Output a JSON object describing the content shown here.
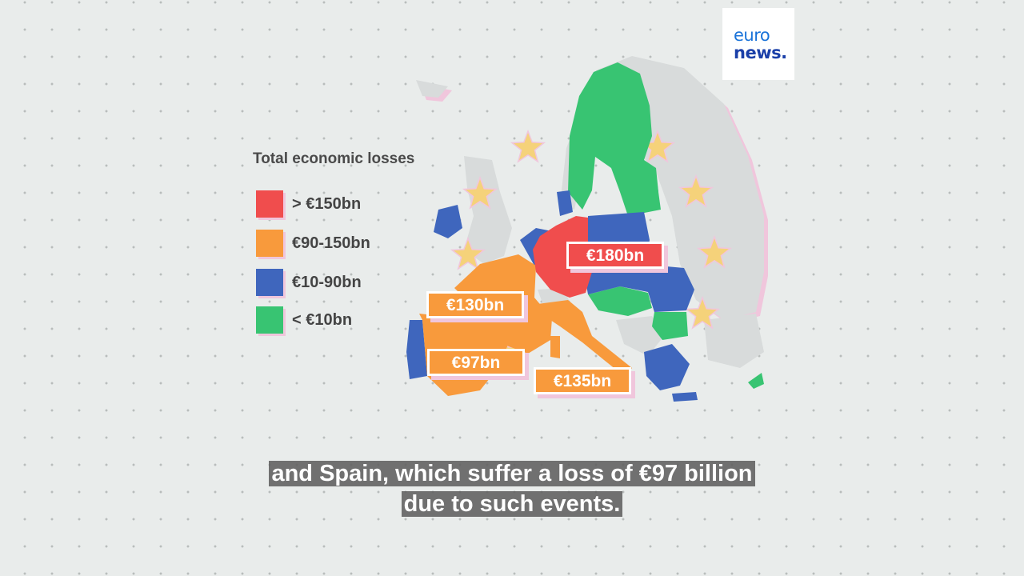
{
  "logo": {
    "line1": "euro",
    "line2": "news."
  },
  "legend": {
    "title": "Total economic losses",
    "items": [
      {
        "label": "> €150bn",
        "color": "#f04d4d"
      },
      {
        "label": "€90-150bn",
        "color": "#f89a3c"
      },
      {
        "label": "€10-90bn",
        "color": "#3f66bd"
      },
      {
        "label": "< €10bn",
        "color": "#38c472"
      }
    ]
  },
  "map_labels": {
    "germany": "€180bn",
    "france": "€130bn",
    "spain": "€97bn",
    "italy": "€135bn"
  },
  "colors": {
    "non_eu": "#d8dbdb",
    "shadow": "#f0c6dc",
    "star": "#f5d27a",
    "label_text": "#ffffff"
  },
  "subtitle": {
    "line1": "and Spain, which suffer a loss of €97 billion",
    "line2": "due to such events."
  }
}
